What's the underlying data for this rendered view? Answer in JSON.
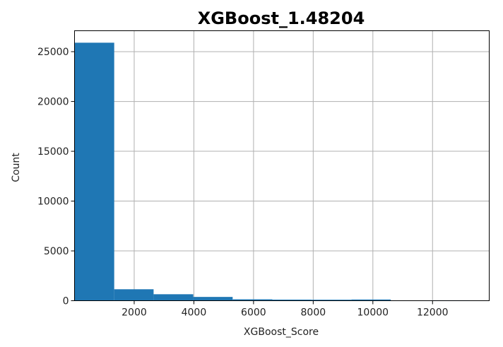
{
  "chart_data": {
    "type": "bar",
    "title": "XGBoost_1.48204",
    "xlabel": "XGBoost_Score",
    "ylabel": "Count",
    "xlim": [
      0,
      13900
    ],
    "ylim": [
      0,
      27100
    ],
    "xticks": [
      2000,
      4000,
      6000,
      8000,
      10000,
      12000
    ],
    "xtick_labels": [
      "2000",
      "4000",
      "6000",
      "8000",
      "10000",
      "12000"
    ],
    "yticks": [
      0,
      5000,
      10000,
      15000,
      20000,
      25000
    ],
    "ytick_labels": [
      "0",
      "5000",
      "10000",
      "15000",
      "20000",
      "25000"
    ],
    "grid": true,
    "bar_color": "#1f77b4",
    "bins": [
      {
        "x0": 5,
        "x1": 1330,
        "count": 25900
      },
      {
        "x0": 1330,
        "x1": 2650,
        "count": 1150
      },
      {
        "x0": 2650,
        "x1": 3980,
        "count": 650
      },
      {
        "x0": 3980,
        "x1": 5300,
        "count": 380
      },
      {
        "x0": 5300,
        "x1": 6630,
        "count": 140
      },
      {
        "x0": 6630,
        "x1": 7950,
        "count": 110
      },
      {
        "x0": 7950,
        "x1": 9280,
        "count": 100
      },
      {
        "x0": 9280,
        "x1": 10600,
        "count": 120
      },
      {
        "x0": 10600,
        "x1": 11930,
        "count": 0
      },
      {
        "x0": 11930,
        "x1": 13250,
        "count": 40
      }
    ]
  }
}
